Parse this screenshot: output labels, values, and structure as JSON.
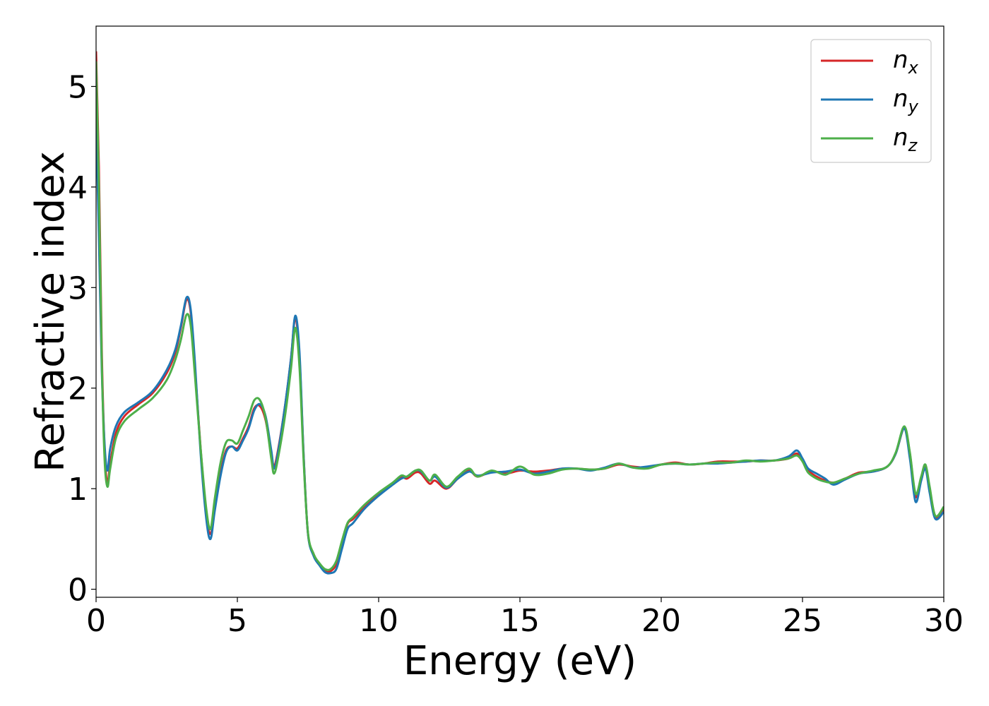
{
  "chart_data": {
    "type": "line",
    "xlabel": "Energy (eV)",
    "ylabel": "Refractive index",
    "xlim": [
      0,
      30
    ],
    "ylim": [
      -0.08,
      5.6
    ],
    "xticks": [
      0,
      5,
      10,
      15,
      20,
      25,
      30
    ],
    "yticks": [
      0,
      1,
      2,
      3,
      4,
      5
    ],
    "xtick_labels": [
      "0",
      "5",
      "10",
      "15",
      "20",
      "25",
      "30"
    ],
    "ytick_labels": [
      "0",
      "1",
      "2",
      "3",
      "4",
      "5"
    ],
    "grid": false,
    "legend_position": "top-right",
    "series": [
      {
        "name": "n_x",
        "name_base": "n",
        "name_sub": "x",
        "color": "#d62728",
        "points": [
          [
            0,
            5.35
          ],
          [
            0.1,
            4.2
          ],
          [
            0.2,
            2.4
          ],
          [
            0.3,
            1.4
          ],
          [
            0.4,
            1.05
          ],
          [
            0.5,
            1.25
          ],
          [
            0.7,
            1.55
          ],
          [
            1.0,
            1.72
          ],
          [
            1.5,
            1.84
          ],
          [
            2.0,
            1.95
          ],
          [
            2.5,
            2.15
          ],
          [
            2.8,
            2.35
          ],
          [
            3.0,
            2.6
          ],
          [
            3.2,
            2.88
          ],
          [
            3.35,
            2.75
          ],
          [
            3.5,
            2.2
          ],
          [
            3.7,
            1.4
          ],
          [
            3.9,
            0.75
          ],
          [
            4.05,
            0.55
          ],
          [
            4.2,
            0.8
          ],
          [
            4.4,
            1.15
          ],
          [
            4.6,
            1.38
          ],
          [
            4.8,
            1.42
          ],
          [
            5.0,
            1.4
          ],
          [
            5.2,
            1.5
          ],
          [
            5.4,
            1.62
          ],
          [
            5.6,
            1.8
          ],
          [
            5.8,
            1.82
          ],
          [
            6.0,
            1.68
          ],
          [
            6.2,
            1.35
          ],
          [
            6.3,
            1.22
          ],
          [
            6.45,
            1.4
          ],
          [
            6.7,
            1.85
          ],
          [
            6.9,
            2.3
          ],
          [
            7.05,
            2.7
          ],
          [
            7.2,
            2.3
          ],
          [
            7.35,
            1.3
          ],
          [
            7.5,
            0.55
          ],
          [
            7.7,
            0.35
          ],
          [
            7.9,
            0.25
          ],
          [
            8.1,
            0.18
          ],
          [
            8.3,
            0.18
          ],
          [
            8.5,
            0.25
          ],
          [
            8.7,
            0.45
          ],
          [
            8.9,
            0.65
          ],
          [
            9.1,
            0.7
          ],
          [
            9.5,
            0.82
          ],
          [
            10.0,
            0.95
          ],
          [
            10.5,
            1.05
          ],
          [
            10.8,
            1.12
          ],
          [
            11.0,
            1.1
          ],
          [
            11.3,
            1.16
          ],
          [
            11.5,
            1.15
          ],
          [
            11.8,
            1.05
          ],
          [
            12.0,
            1.08
          ],
          [
            12.4,
            1.0
          ],
          [
            12.8,
            1.1
          ],
          [
            13.2,
            1.18
          ],
          [
            13.5,
            1.12
          ],
          [
            14.0,
            1.17
          ],
          [
            14.5,
            1.15
          ],
          [
            15.0,
            1.18
          ],
          [
            15.5,
            1.17
          ],
          [
            16.0,
            1.18
          ],
          [
            16.5,
            1.2
          ],
          [
            17.0,
            1.2
          ],
          [
            17.5,
            1.19
          ],
          [
            18.0,
            1.2
          ],
          [
            18.5,
            1.24
          ],
          [
            19.0,
            1.22
          ],
          [
            19.5,
            1.21
          ],
          [
            20.0,
            1.24
          ],
          [
            20.5,
            1.26
          ],
          [
            21.0,
            1.24
          ],
          [
            21.5,
            1.25
          ],
          [
            22.0,
            1.27
          ],
          [
            22.5,
            1.27
          ],
          [
            23.0,
            1.27
          ],
          [
            23.5,
            1.28
          ],
          [
            24.0,
            1.28
          ],
          [
            24.5,
            1.3
          ],
          [
            24.8,
            1.35
          ],
          [
            25.0,
            1.28
          ],
          [
            25.2,
            1.18
          ],
          [
            25.5,
            1.12
          ],
          [
            25.8,
            1.08
          ],
          [
            26.1,
            1.06
          ],
          [
            26.5,
            1.1
          ],
          [
            27.0,
            1.16
          ],
          [
            27.5,
            1.17
          ],
          [
            28.0,
            1.22
          ],
          [
            28.3,
            1.35
          ],
          [
            28.6,
            1.6
          ],
          [
            28.8,
            1.35
          ],
          [
            29.0,
            0.92
          ],
          [
            29.2,
            1.1
          ],
          [
            29.35,
            1.22
          ],
          [
            29.5,
            1.0
          ],
          [
            29.7,
            0.72
          ],
          [
            30.0,
            0.8
          ]
        ]
      },
      {
        "name": "n_y",
        "name_base": "n",
        "name_sub": "y",
        "color": "#1f77b4",
        "points": [
          [
            0,
            4.7
          ],
          [
            0.1,
            3.5
          ],
          [
            0.2,
            2.2
          ],
          [
            0.3,
            1.45
          ],
          [
            0.4,
            1.18
          ],
          [
            0.5,
            1.4
          ],
          [
            0.7,
            1.62
          ],
          [
            1.0,
            1.76
          ],
          [
            1.5,
            1.86
          ],
          [
            2.0,
            1.97
          ],
          [
            2.5,
            2.18
          ],
          [
            2.8,
            2.38
          ],
          [
            3.0,
            2.62
          ],
          [
            3.2,
            2.9
          ],
          [
            3.35,
            2.78
          ],
          [
            3.5,
            2.25
          ],
          [
            3.7,
            1.35
          ],
          [
            3.9,
            0.7
          ],
          [
            4.05,
            0.5
          ],
          [
            4.2,
            0.78
          ],
          [
            4.4,
            1.12
          ],
          [
            4.6,
            1.36
          ],
          [
            4.8,
            1.42
          ],
          [
            5.0,
            1.38
          ],
          [
            5.2,
            1.48
          ],
          [
            5.4,
            1.6
          ],
          [
            5.6,
            1.78
          ],
          [
            5.8,
            1.84
          ],
          [
            6.0,
            1.72
          ],
          [
            6.2,
            1.38
          ],
          [
            6.3,
            1.2
          ],
          [
            6.45,
            1.38
          ],
          [
            6.7,
            1.85
          ],
          [
            6.9,
            2.3
          ],
          [
            7.05,
            2.72
          ],
          [
            7.2,
            2.35
          ],
          [
            7.35,
            1.3
          ],
          [
            7.5,
            0.55
          ],
          [
            7.7,
            0.33
          ],
          [
            7.9,
            0.24
          ],
          [
            8.1,
            0.17
          ],
          [
            8.3,
            0.16
          ],
          [
            8.5,
            0.2
          ],
          [
            8.7,
            0.4
          ],
          [
            8.9,
            0.6
          ],
          [
            9.1,
            0.66
          ],
          [
            9.5,
            0.8
          ],
          [
            10.0,
            0.93
          ],
          [
            10.5,
            1.04
          ],
          [
            10.8,
            1.1
          ],
          [
            11.0,
            1.12
          ],
          [
            11.3,
            1.18
          ],
          [
            11.5,
            1.17
          ],
          [
            11.8,
            1.08
          ],
          [
            12.0,
            1.12
          ],
          [
            12.4,
            1.01
          ],
          [
            12.8,
            1.1
          ],
          [
            13.2,
            1.17
          ],
          [
            13.5,
            1.13
          ],
          [
            14.0,
            1.16
          ],
          [
            14.5,
            1.17
          ],
          [
            15.0,
            1.19
          ],
          [
            15.5,
            1.15
          ],
          [
            16.0,
            1.17
          ],
          [
            16.5,
            1.2
          ],
          [
            17.0,
            1.2
          ],
          [
            17.5,
            1.18
          ],
          [
            18.0,
            1.21
          ],
          [
            18.5,
            1.25
          ],
          [
            19.0,
            1.21
          ],
          [
            19.5,
            1.22
          ],
          [
            20.0,
            1.24
          ],
          [
            20.5,
            1.25
          ],
          [
            21.0,
            1.24
          ],
          [
            21.5,
            1.25
          ],
          [
            22.0,
            1.25
          ],
          [
            22.5,
            1.26
          ],
          [
            23.0,
            1.27
          ],
          [
            23.5,
            1.28
          ],
          [
            24.0,
            1.28
          ],
          [
            24.5,
            1.32
          ],
          [
            24.8,
            1.38
          ],
          [
            25.0,
            1.3
          ],
          [
            25.2,
            1.2
          ],
          [
            25.5,
            1.15
          ],
          [
            25.8,
            1.1
          ],
          [
            26.1,
            1.04
          ],
          [
            26.5,
            1.09
          ],
          [
            27.0,
            1.15
          ],
          [
            27.5,
            1.17
          ],
          [
            28.0,
            1.22
          ],
          [
            28.3,
            1.35
          ],
          [
            28.6,
            1.6
          ],
          [
            28.8,
            1.3
          ],
          [
            29.0,
            0.87
          ],
          [
            29.2,
            1.08
          ],
          [
            29.35,
            1.2
          ],
          [
            29.5,
            0.96
          ],
          [
            29.7,
            0.7
          ],
          [
            30.0,
            0.77
          ]
        ]
      },
      {
        "name": "n_z",
        "name_base": "n",
        "name_sub": "z",
        "color": "#4daf4a",
        "points": [
          [
            0,
            5.25
          ],
          [
            0.1,
            4.0
          ],
          [
            0.2,
            2.3
          ],
          [
            0.3,
            1.3
          ],
          [
            0.4,
            1.02
          ],
          [
            0.5,
            1.2
          ],
          [
            0.7,
            1.5
          ],
          [
            1.0,
            1.67
          ],
          [
            1.5,
            1.79
          ],
          [
            2.0,
            1.9
          ],
          [
            2.5,
            2.08
          ],
          [
            2.8,
            2.28
          ],
          [
            3.0,
            2.48
          ],
          [
            3.2,
            2.73
          ],
          [
            3.35,
            2.62
          ],
          [
            3.5,
            2.12
          ],
          [
            3.7,
            1.4
          ],
          [
            3.9,
            0.8
          ],
          [
            4.05,
            0.6
          ],
          [
            4.2,
            0.9
          ],
          [
            4.4,
            1.25
          ],
          [
            4.6,
            1.46
          ],
          [
            4.8,
            1.48
          ],
          [
            5.0,
            1.45
          ],
          [
            5.2,
            1.58
          ],
          [
            5.4,
            1.72
          ],
          [
            5.6,
            1.88
          ],
          [
            5.8,
            1.88
          ],
          [
            6.0,
            1.7
          ],
          [
            6.2,
            1.3
          ],
          [
            6.3,
            1.15
          ],
          [
            6.45,
            1.32
          ],
          [
            6.7,
            1.75
          ],
          [
            6.9,
            2.2
          ],
          [
            7.05,
            2.6
          ],
          [
            7.2,
            2.2
          ],
          [
            7.35,
            1.25
          ],
          [
            7.5,
            0.56
          ],
          [
            7.7,
            0.35
          ],
          [
            7.9,
            0.26
          ],
          [
            8.1,
            0.2
          ],
          [
            8.3,
            0.2
          ],
          [
            8.5,
            0.28
          ],
          [
            8.7,
            0.48
          ],
          [
            8.9,
            0.66
          ],
          [
            9.1,
            0.72
          ],
          [
            9.5,
            0.84
          ],
          [
            10.0,
            0.96
          ],
          [
            10.5,
            1.06
          ],
          [
            10.8,
            1.13
          ],
          [
            11.0,
            1.12
          ],
          [
            11.3,
            1.18
          ],
          [
            11.5,
            1.18
          ],
          [
            11.8,
            1.08
          ],
          [
            12.0,
            1.14
          ],
          [
            12.4,
            1.02
          ],
          [
            12.8,
            1.12
          ],
          [
            13.2,
            1.2
          ],
          [
            13.5,
            1.12
          ],
          [
            14.0,
            1.18
          ],
          [
            14.5,
            1.14
          ],
          [
            15.0,
            1.22
          ],
          [
            15.5,
            1.14
          ],
          [
            16.0,
            1.15
          ],
          [
            16.5,
            1.19
          ],
          [
            17.0,
            1.2
          ],
          [
            17.5,
            1.19
          ],
          [
            18.0,
            1.2
          ],
          [
            18.5,
            1.25
          ],
          [
            19.0,
            1.21
          ],
          [
            19.5,
            1.2
          ],
          [
            20.0,
            1.24
          ],
          [
            20.5,
            1.25
          ],
          [
            21.0,
            1.24
          ],
          [
            21.5,
            1.25
          ],
          [
            22.0,
            1.26
          ],
          [
            22.5,
            1.26
          ],
          [
            23.0,
            1.28
          ],
          [
            23.5,
            1.27
          ],
          [
            24.0,
            1.28
          ],
          [
            24.5,
            1.3
          ],
          [
            24.8,
            1.33
          ],
          [
            25.0,
            1.27
          ],
          [
            25.2,
            1.16
          ],
          [
            25.5,
            1.1
          ],
          [
            25.8,
            1.07
          ],
          [
            26.1,
            1.06
          ],
          [
            26.5,
            1.1
          ],
          [
            27.0,
            1.15
          ],
          [
            27.5,
            1.18
          ],
          [
            28.0,
            1.22
          ],
          [
            28.3,
            1.36
          ],
          [
            28.6,
            1.62
          ],
          [
            28.8,
            1.36
          ],
          [
            29.0,
            0.95
          ],
          [
            29.2,
            1.12
          ],
          [
            29.35,
            1.24
          ],
          [
            29.5,
            1.02
          ],
          [
            29.7,
            0.73
          ],
          [
            30.0,
            0.82
          ]
        ]
      }
    ]
  }
}
